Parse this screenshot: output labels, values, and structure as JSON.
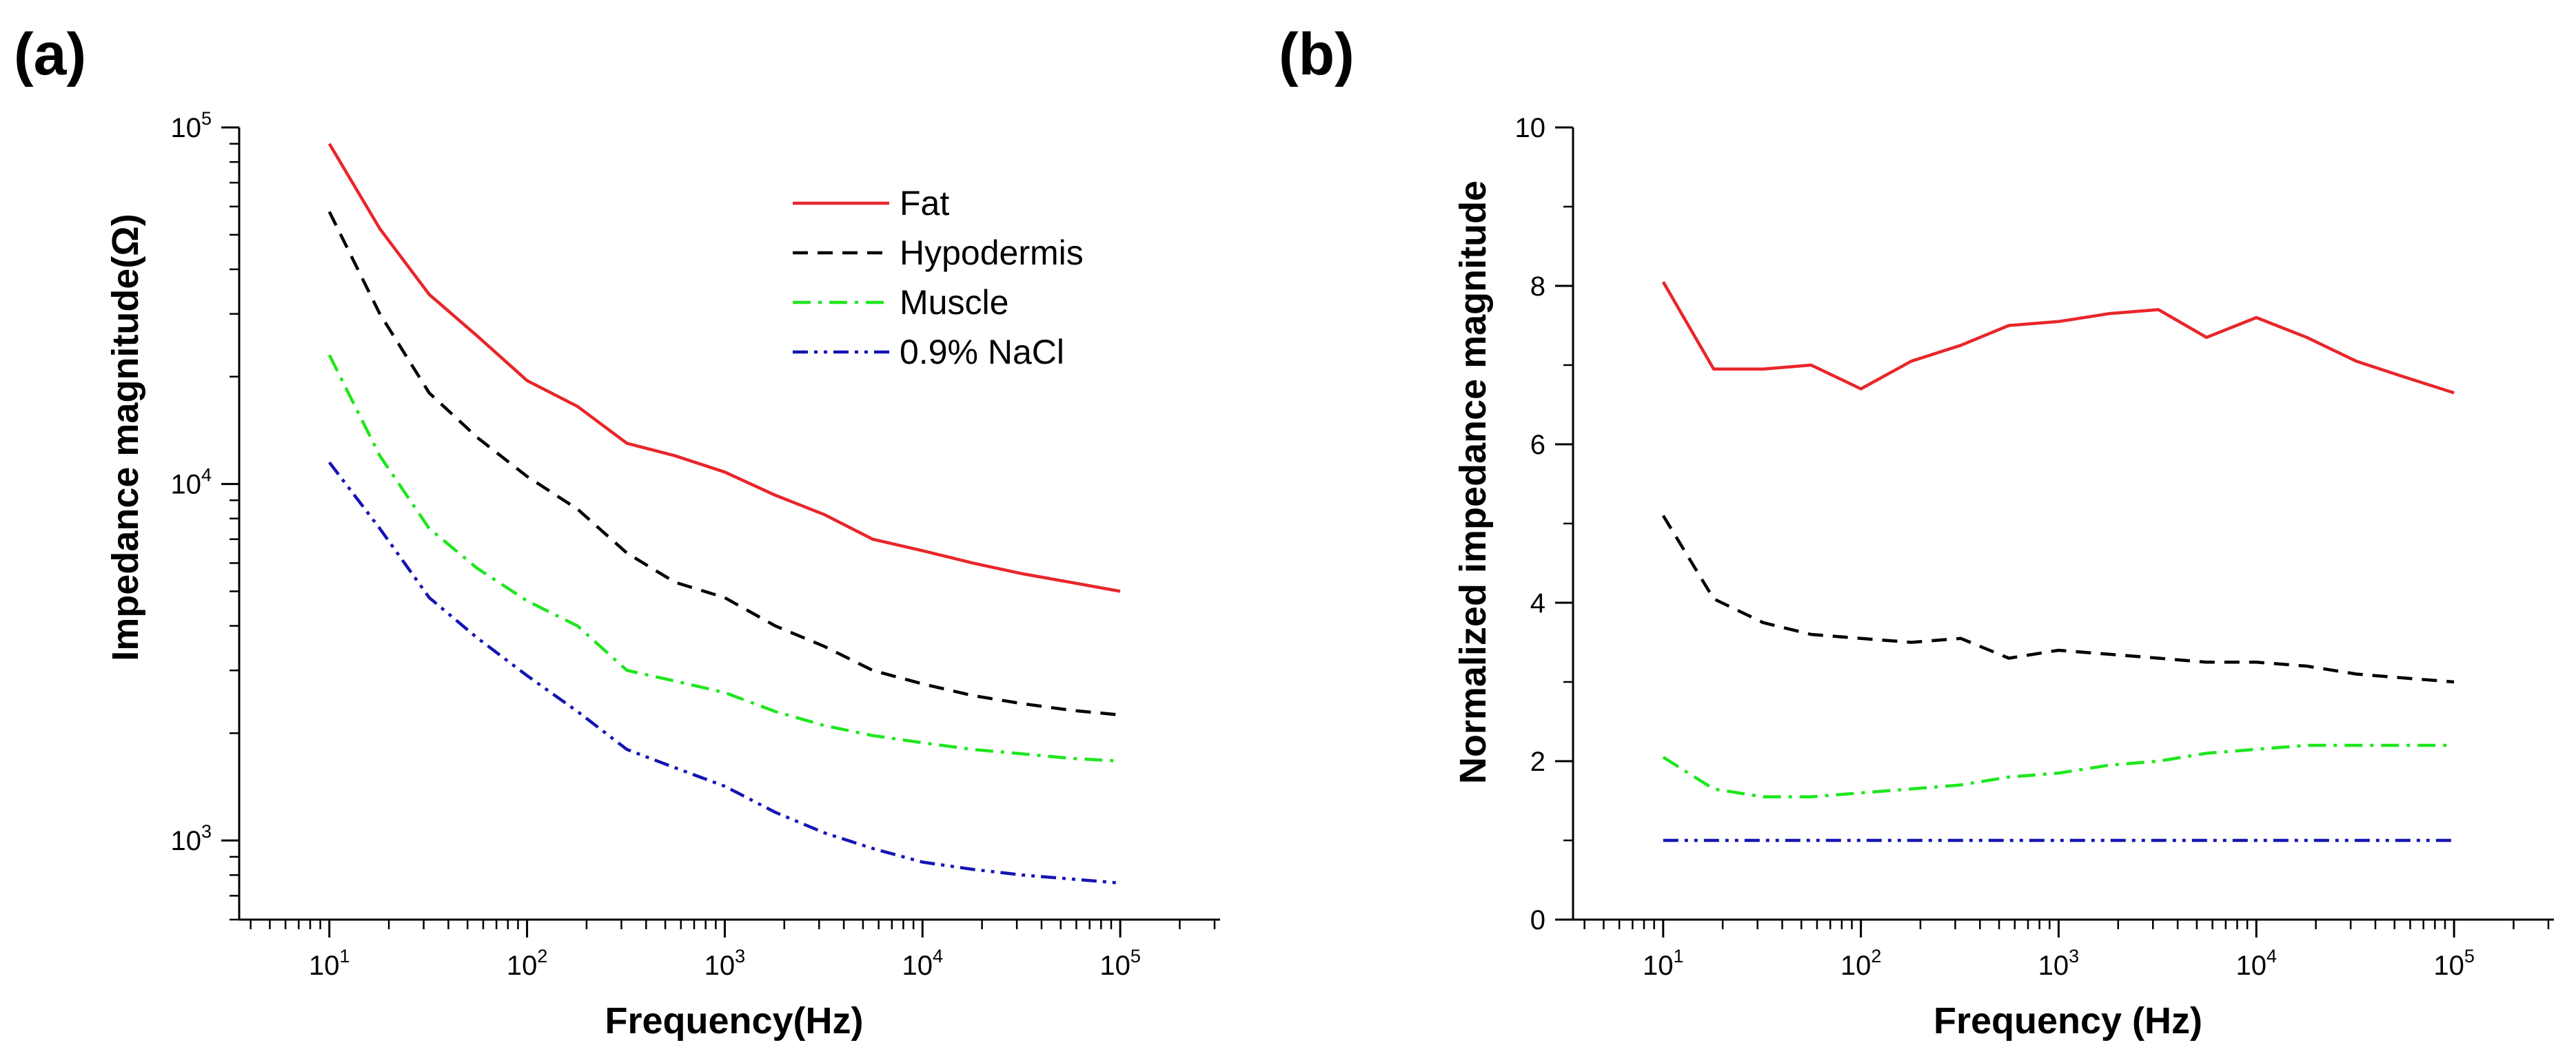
{
  "chart_data": [
    {
      "panel_label": "(a)",
      "type": "line",
      "xscale": "log",
      "yscale": "log",
      "xlabel": "Frequency(Hz)",
      "ylabel": "Impedance magnitude(Ω)",
      "xlim": [
        3.5,
        320000
      ],
      "ylim": [
        600,
        100000
      ],
      "x_ticks": [
        {
          "base": "10",
          "exp": "1",
          "value": 10
        },
        {
          "base": "10",
          "exp": "2",
          "value": 100
        },
        {
          "base": "10",
          "exp": "3",
          "value": 1000
        },
        {
          "base": "10",
          "exp": "4",
          "value": 10000
        },
        {
          "base": "10",
          "exp": "5",
          "value": 100000
        }
      ],
      "y_ticks": [
        {
          "base": "10",
          "exp": "3",
          "value": 1000
        },
        {
          "base": "10",
          "exp": "4",
          "value": 10000
        },
        {
          "base": "10",
          "exp": "5",
          "value": 100000
        }
      ],
      "grid": false,
      "legend": "top-right",
      "series": [
        {
          "name": "Fat",
          "color": "#e8262a",
          "dash": "solid",
          "x": [
            10,
            18,
            32,
            56,
            100,
            180,
            320,
            560,
            1000,
            1800,
            3200,
            5600,
            10000,
            18000,
            32000,
            56000,
            100000
          ],
          "values": [
            90000,
            52000,
            34000,
            26000,
            19500,
            16500,
            13000,
            12000,
            10800,
            9300,
            8200,
            7000,
            6500,
            6000,
            5600,
            5300,
            5000
          ]
        },
        {
          "name": "Hypodermis",
          "color": "#000000",
          "dash": "dashed",
          "x": [
            10,
            18,
            32,
            56,
            100,
            180,
            320,
            560,
            1000,
            1800,
            3200,
            5600,
            10000,
            18000,
            32000,
            56000,
            100000
          ],
          "values": [
            58000,
            30000,
            18000,
            13500,
            10500,
            8500,
            6400,
            5300,
            4800,
            4000,
            3500,
            3000,
            2750,
            2550,
            2420,
            2320,
            2250
          ]
        },
        {
          "name": "Muscle",
          "color": "#1fe61f",
          "dash": "dashdot",
          "x": [
            10,
            18,
            32,
            56,
            100,
            180,
            320,
            560,
            1000,
            1800,
            3200,
            5600,
            10000,
            18000,
            32000,
            56000,
            100000
          ],
          "values": [
            23000,
            12000,
            7500,
            5800,
            4700,
            4000,
            3000,
            2800,
            2600,
            2300,
            2100,
            1970,
            1880,
            1800,
            1750,
            1700,
            1670
          ]
        },
        {
          "name": "0.9% NaCl",
          "color": "#1414b4",
          "dash": "dashdotdot",
          "x": [
            10,
            18,
            32,
            56,
            100,
            180,
            320,
            560,
            1000,
            1800,
            3200,
            5600,
            10000,
            18000,
            32000,
            56000,
            100000
          ],
          "values": [
            11500,
            7500,
            4800,
            3700,
            2900,
            2300,
            1800,
            1600,
            1420,
            1200,
            1050,
            950,
            870,
            830,
            800,
            780,
            760
          ]
        }
      ]
    },
    {
      "panel_label": "(b)",
      "type": "line",
      "xscale": "log",
      "yscale": "linear",
      "xlabel": "Frequency (Hz)",
      "ylabel": "Normalized impedance magnitude",
      "xlim": [
        3.5,
        320000
      ],
      "ylim": [
        0,
        10
      ],
      "x_ticks": [
        {
          "base": "10",
          "exp": "1",
          "value": 10
        },
        {
          "base": "10",
          "exp": "2",
          "value": 100
        },
        {
          "base": "10",
          "exp": "3",
          "value": 1000
        },
        {
          "base": "10",
          "exp": "4",
          "value": 10000
        },
        {
          "base": "10",
          "exp": "5",
          "value": 100000
        }
      ],
      "y_ticks": [
        {
          "label": "0",
          "value": 0
        },
        {
          "label": "2",
          "value": 2
        },
        {
          "label": "4",
          "value": 4
        },
        {
          "label": "6",
          "value": 6
        },
        {
          "label": "8",
          "value": 8
        },
        {
          "label": "10",
          "value": 10
        }
      ],
      "grid": false,
      "series": [
        {
          "color": "#e8262a",
          "dash": "solid",
          "x": [
            10,
            18,
            32,
            56,
            100,
            180,
            320,
            560,
            1000,
            1800,
            3200,
            5600,
            10000,
            18000,
            32000,
            56000,
            100000
          ],
          "values": [
            8.05,
            6.95,
            6.95,
            7.0,
            6.7,
            7.05,
            7.25,
            7.5,
            7.55,
            7.65,
            7.7,
            7.35,
            7.6,
            7.35,
            7.05,
            6.85,
            6.65
          ]
        },
        {
          "color": "#000000",
          "dash": "dashed",
          "x": [
            10,
            18,
            32,
            56,
            100,
            180,
            320,
            560,
            1000,
            1800,
            3200,
            5600,
            10000,
            18000,
            32000,
            56000,
            100000
          ],
          "values": [
            5.1,
            4.05,
            3.75,
            3.6,
            3.55,
            3.5,
            3.55,
            3.3,
            3.4,
            3.35,
            3.3,
            3.25,
            3.25,
            3.2,
            3.1,
            3.05,
            3.0
          ]
        },
        {
          "color": "#1fe61f",
          "dash": "dashdot",
          "x": [
            10,
            18,
            32,
            56,
            100,
            180,
            320,
            560,
            1000,
            1800,
            3200,
            5600,
            10000,
            18000,
            32000,
            56000,
            100000
          ],
          "values": [
            2.05,
            1.65,
            1.55,
            1.55,
            1.6,
            1.65,
            1.7,
            1.8,
            1.85,
            1.95,
            2.0,
            2.1,
            2.15,
            2.2,
            2.2,
            2.2,
            2.2
          ]
        },
        {
          "color": "#1414b4",
          "dash": "dashdotdot",
          "x": [
            10,
            18,
            32,
            56,
            100,
            180,
            320,
            560,
            1000,
            1800,
            3200,
            5600,
            10000,
            18000,
            32000,
            56000,
            100000
          ],
          "values": [
            1,
            1,
            1,
            1,
            1,
            1,
            1,
            1,
            1,
            1,
            1,
            1,
            1,
            1,
            1,
            1,
            1
          ]
        }
      ]
    }
  ]
}
